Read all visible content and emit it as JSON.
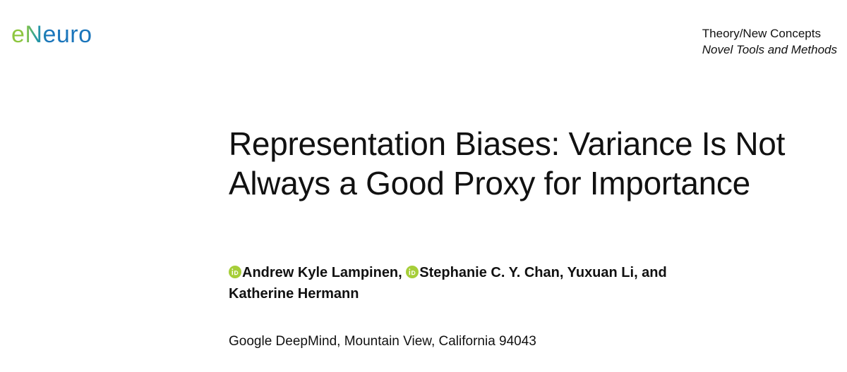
{
  "header": {
    "logo": "eNeuro",
    "section": "Theory/New Concepts",
    "subsection": "Novel Tools and Methods"
  },
  "title": "Representation Biases: Variance Is Not Always a Good Proxy for Importance",
  "authors": [
    {
      "name": "Andrew Kyle Lampinen,",
      "orcid": true
    },
    {
      "name": "Stephanie C. Y. Chan,",
      "orcid": true
    },
    {
      "name": "Yuxuan Li, and",
      "orcid": false
    },
    {
      "name": "Katherine Hermann",
      "orcid": false
    }
  ],
  "affiliation": "Google DeepMind, Mountain View, California 94043"
}
